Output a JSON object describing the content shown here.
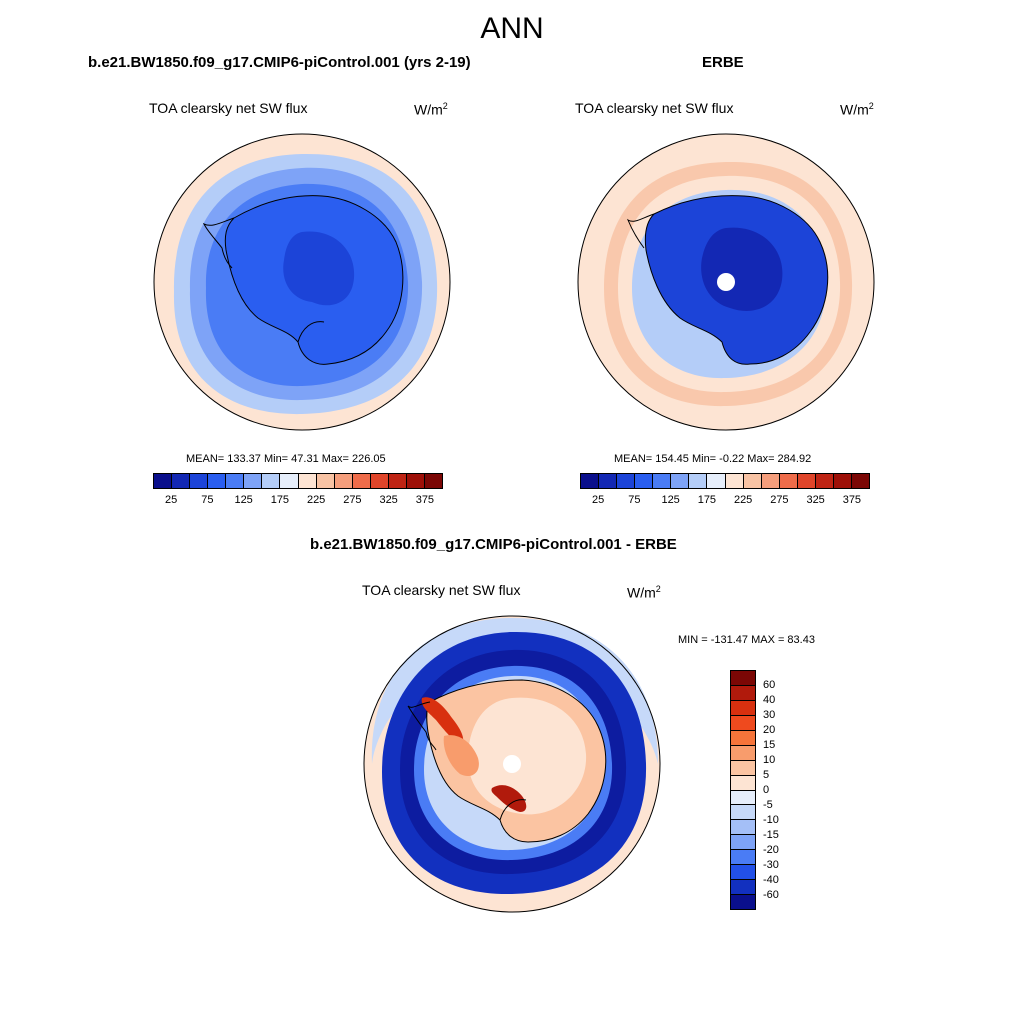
{
  "figure_title": "ANN",
  "units_text": "W/m",
  "units_sup": "2",
  "chart_data": [
    {
      "type": "heatmap",
      "panel": "model",
      "title": "b.e21.BW1850.f09_g17.CMIP6-piControl.001 (yrs 2-19)",
      "variable": "TOA clearsky net SW flux",
      "units": "W/m2",
      "stats": {
        "mean": 133.37,
        "min": 47.31,
        "max": 226.05
      },
      "stats_text": "MEAN= 133.37  Min=  47.31  Max= 226.05",
      "colorbar_levels": [
        25,
        50,
        75,
        100,
        125,
        150,
        175,
        200,
        225,
        250,
        275,
        300,
        325,
        350,
        375
      ],
      "colorbar_tick_labels": [
        "25",
        "75",
        "125",
        "175",
        "225",
        "275",
        "325",
        "375"
      ],
      "colorbar_colors": [
        "#0a0f8c",
        "#1328b4",
        "#1c44d8",
        "#2a5ef0",
        "#4a7cf5",
        "#7ea3f7",
        "#b4cdf8",
        "#e6eefb",
        "#fde4d3",
        "#f8c3a4",
        "#f59e7c",
        "#ef6c4a",
        "#e0452a",
        "#bf2414",
        "#9e1008",
        "#7b0705"
      ]
    },
    {
      "type": "heatmap",
      "panel": "obs",
      "title": "ERBE",
      "variable": "TOA clearsky net SW flux",
      "units": "W/m2",
      "stats": {
        "mean": 154.45,
        "min": -0.22,
        "max": 284.92
      },
      "stats_text": "MEAN= 154.45  Min=  -0.22  Max= 284.92",
      "colorbar_levels": [
        25,
        50,
        75,
        100,
        125,
        150,
        175,
        200,
        225,
        250,
        275,
        300,
        325,
        350,
        375
      ],
      "colorbar_tick_labels": [
        "25",
        "75",
        "125",
        "175",
        "225",
        "275",
        "325",
        "375"
      ],
      "colorbar_colors": [
        "#0a0f8c",
        "#1328b4",
        "#1c44d8",
        "#2a5ef0",
        "#4a7cf5",
        "#7ea3f7",
        "#b4cdf8",
        "#e6eefb",
        "#fde4d3",
        "#f8c3a4",
        "#f59e7c",
        "#ef6c4a",
        "#e0452a",
        "#bf2414",
        "#9e1008",
        "#7b0705"
      ]
    },
    {
      "type": "heatmap",
      "panel": "difference",
      "title": "b.e21.BW1850.f09_g17.CMIP6-piControl.001 - ERBE",
      "variable": "TOA clearsky net SW flux",
      "units": "W/m2",
      "stats": {
        "min": -131.47,
        "max": 83.43
      },
      "stats_text": "MIN = -131.47 MAX =  83.43",
      "colorbar_levels": [
        60,
        40,
        30,
        20,
        15,
        10,
        5,
        0,
        -5,
        -10,
        -15,
        -20,
        -30,
        -40,
        -60
      ],
      "colorbar_tick_labels": [
        "60",
        "40",
        "30",
        "20",
        "15",
        "10",
        "5",
        "0",
        "-5",
        "-10",
        "-15",
        "-20",
        "-30",
        "-40",
        "-60"
      ],
      "colorbar_colors": [
        "#7b0705",
        "#b11a0c",
        "#d8300f",
        "#ef4a1e",
        "#f6743a",
        "#f89c6c",
        "#fbc4a2",
        "#fde4d3",
        "#e6eefb",
        "#c6d9f9",
        "#a4bff7",
        "#7ea3f7",
        "#4a7cf5",
        "#2250e8",
        "#1230bf",
        "#0a0f8c"
      ]
    }
  ]
}
